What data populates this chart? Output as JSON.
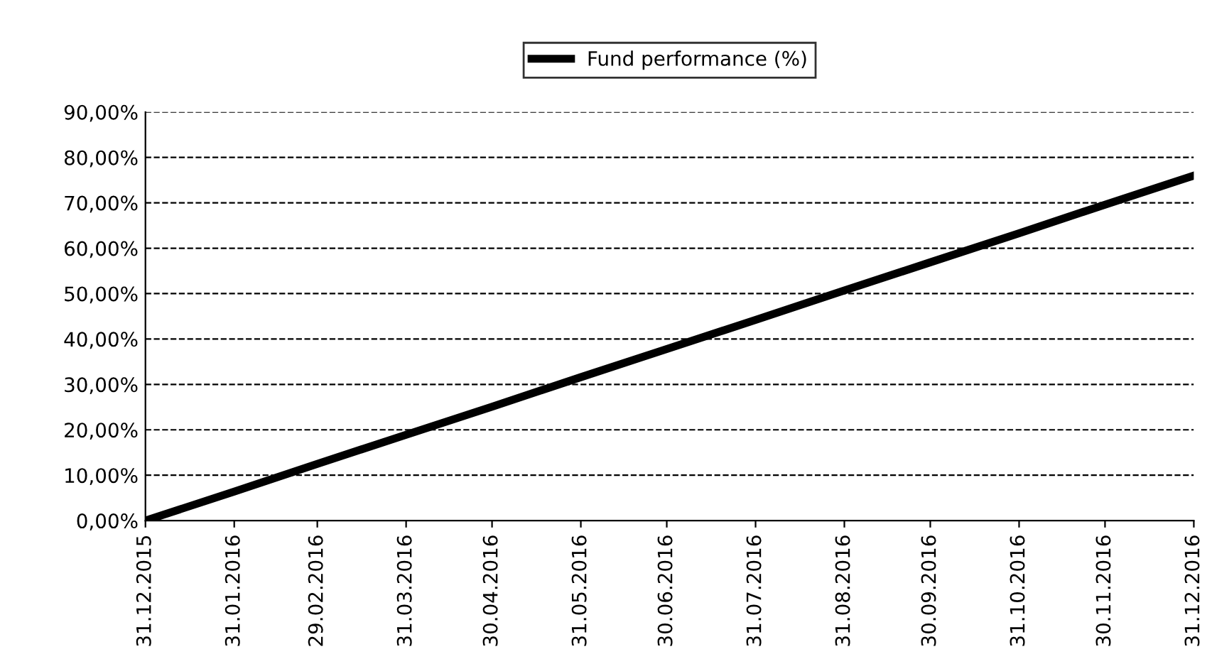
{
  "chart_data": {
    "type": "line",
    "x": [
      "2015-12-31",
      "2016-01-31",
      "2016-02-29",
      "2016-03-31",
      "2016-04-30",
      "2016-05-31",
      "2016-06-30",
      "2016-07-31",
      "2016-08-31",
      "2016-09-30",
      "2016-10-31",
      "2016-11-30",
      "2016-12-31"
    ],
    "series": [
      {
        "name": "Fund performance (%)",
        "color": "#000000",
        "values": [
          0,
          6.4,
          12.5,
          18.9,
          25.1,
          31.6,
          37.8,
          44.2,
          50.7,
          56.9,
          63.3,
          69.6,
          76
        ]
      }
    ],
    "xlim": [
      "2015-12-31",
      "2016-12-31"
    ],
    "xticks": [
      {
        "value": "2015-12-31",
        "label": "31.12.2015"
      },
      {
        "value": "2016-01-31",
        "label": "31.01.2016"
      },
      {
        "value": "2016-02-29",
        "label": "29.02.2016"
      },
      {
        "value": "2016-03-31",
        "label": "31.03.2016"
      },
      {
        "value": "2016-04-30",
        "label": "30.04.2016"
      },
      {
        "value": "2016-05-31",
        "label": "31.05.2016"
      },
      {
        "value": "2016-06-30",
        "label": "30.06.2016"
      },
      {
        "value": "2016-07-31",
        "label": "31.07.2016"
      },
      {
        "value": "2016-08-31",
        "label": "31.08.2016"
      },
      {
        "value": "2016-09-30",
        "label": "30.09.2016"
      },
      {
        "value": "2016-10-31",
        "label": "31.10.2016"
      },
      {
        "value": "2016-11-30",
        "label": "30.11.2016"
      },
      {
        "value": "2016-12-31",
        "label": "31.12.2016"
      }
    ],
    "ylim": [
      0,
      90
    ],
    "yticks": [
      {
        "value": 0,
        "label": "0,00%"
      },
      {
        "value": 10,
        "label": "10,00%"
      },
      {
        "value": 20,
        "label": "20,00%"
      },
      {
        "value": 30,
        "label": "30,00%"
      },
      {
        "value": 40,
        "label": "40,00%"
      },
      {
        "value": 50,
        "label": "50,00%"
      },
      {
        "value": 60,
        "label": "60,00%"
      },
      {
        "value": 70,
        "label": "70,00%"
      },
      {
        "value": 80,
        "label": "80,00%"
      },
      {
        "value": 90,
        "label": "90,00%"
      }
    ],
    "grid": "y",
    "legend": "top",
    "marker": "none",
    "line_style": "solid"
  }
}
